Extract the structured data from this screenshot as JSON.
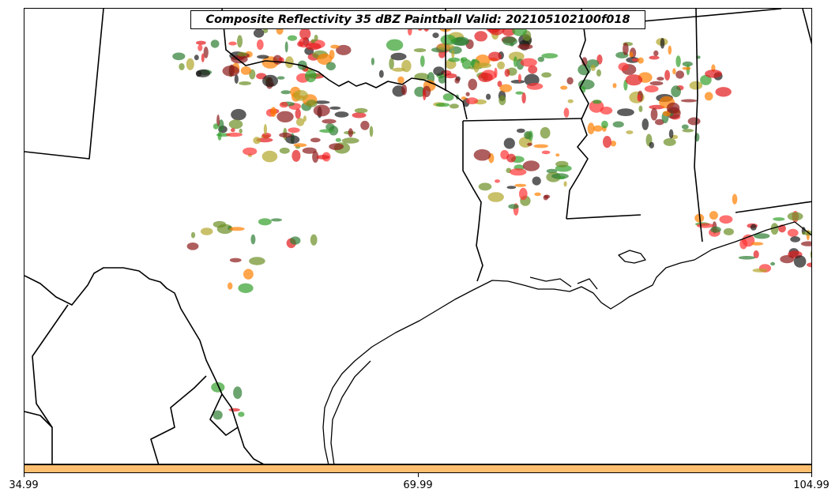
{
  "title": "Composite Reflectivity 35 dBZ Paintball Valid: 202105102100f018",
  "colorbar": {
    "color": "#fdbf6f",
    "ticks": [
      "34.99",
      "69.99",
      "104.99"
    ],
    "range": [
      34.99,
      104.99
    ]
  },
  "paintball_colors": [
    "#e31a1c",
    "#ff7f00",
    "#33a02c",
    "#1a1a1a",
    "#6b8e23",
    "#8b1a1a",
    "#b2a52b",
    "#ff3333",
    "#2e7d32"
  ],
  "map_features": [
    "state-borders",
    "coastline",
    "mexico-border",
    "paintball-storm-cells"
  ]
}
